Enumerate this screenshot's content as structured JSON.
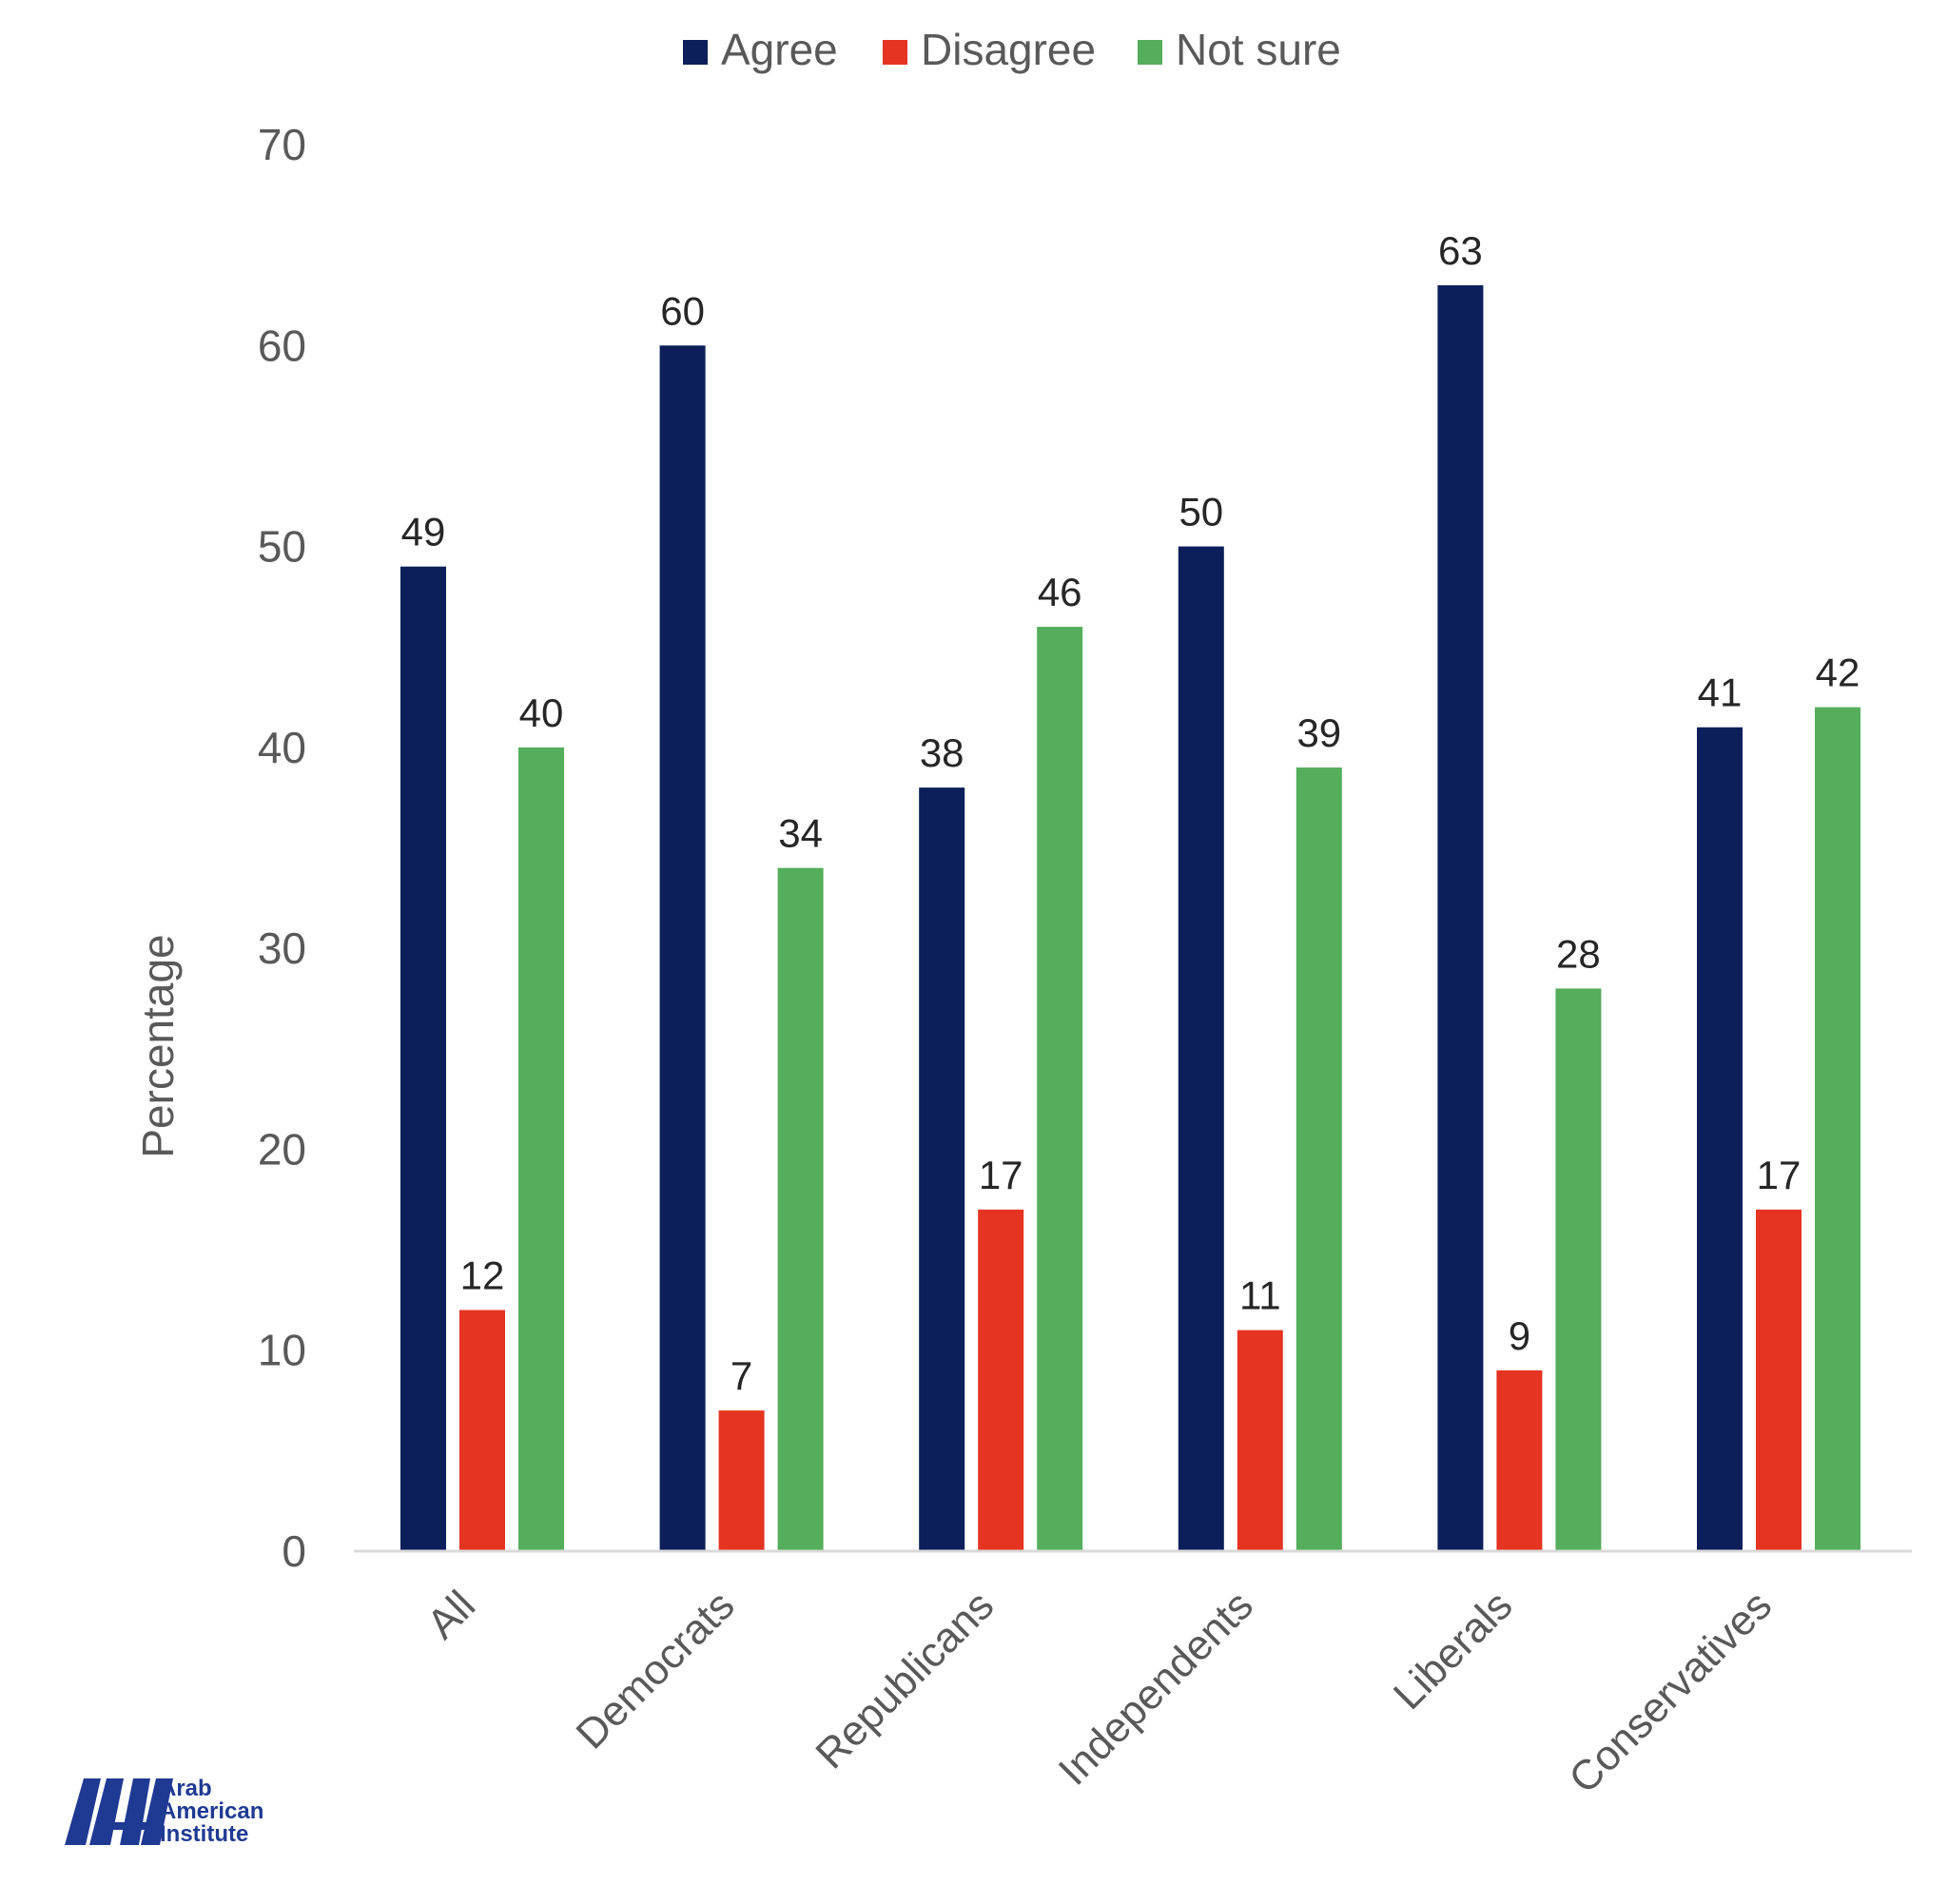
{
  "chart_data": {
    "type": "bar",
    "title": "",
    "xlabel": "",
    "ylabel": "Percentage",
    "ylim": [
      0,
      70
    ],
    "yticks": [
      0,
      10,
      20,
      30,
      40,
      50,
      60,
      70
    ],
    "grid": false,
    "legend_position": "top-center",
    "categories": [
      "All",
      "Democrats",
      "Republicans",
      "Independents",
      "Liberals",
      "Conservatives"
    ],
    "series": [
      {
        "name": "Agree",
        "color": "#0c1f5a",
        "values": [
          49,
          60,
          38,
          50,
          63,
          41
        ]
      },
      {
        "name": "Disagree",
        "color": "#e53422",
        "values": [
          12,
          7,
          17,
          11,
          9,
          17
        ]
      },
      {
        "name": "Not sure",
        "color": "#54ae5b",
        "values": [
          40,
          34,
          46,
          39,
          28,
          42
        ]
      }
    ]
  },
  "logo": {
    "text": [
      "Arab",
      "American",
      "Institute"
    ],
    "color": "#1f3a93"
  }
}
